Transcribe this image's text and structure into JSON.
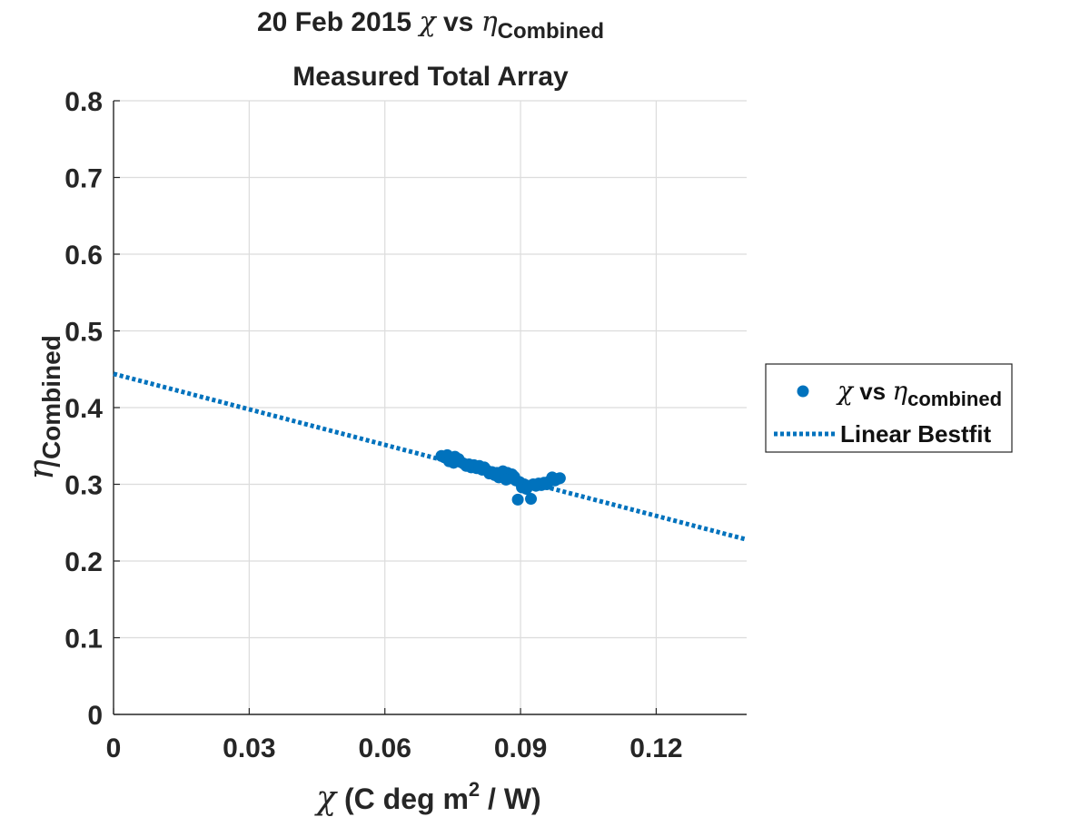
{
  "chart_data": {
    "type": "scatter",
    "title": {
      "line1_prefix": "20 Feb 2015 ",
      "line1_chi": "χ",
      "line1_vs": " vs ",
      "line1_eta": "η",
      "line1_sub": "Combined",
      "line2": "Measured Total Array"
    },
    "xlabel": {
      "symbol": "χ",
      "text": " (C deg m",
      "sup": "2",
      "tail": " / W)"
    },
    "ylabel": {
      "symbol": "η",
      "sub": "Combined"
    },
    "xlim": [
      0,
      0.14
    ],
    "ylim": [
      0,
      0.8
    ],
    "xticks": [
      0,
      0.03,
      0.06,
      0.09,
      0.12
    ],
    "xtick_labels": [
      "0",
      "0.03",
      "0.06",
      "0.09",
      "0.12"
    ],
    "yticks": [
      0,
      0.1,
      0.2,
      0.3,
      0.4,
      0.5,
      0.6,
      0.7,
      0.8
    ],
    "ytick_labels": [
      "0",
      "0.1",
      "0.2",
      "0.3",
      "0.4",
      "0.5",
      "0.6",
      "0.7",
      "0.8"
    ],
    "grid": true,
    "legend_position": "outside-right",
    "series": [
      {
        "name": "χ vs η combined",
        "legend_symbol": "χ",
        "legend_vs": " vs ",
        "legend_eta": "η",
        "legend_sub": "combined",
        "type": "scatter",
        "color": "#0072BD",
        "points": [
          [
            0.0725,
            0.337
          ],
          [
            0.0732,
            0.335
          ],
          [
            0.0738,
            0.338
          ],
          [
            0.0742,
            0.33
          ],
          [
            0.0748,
            0.334
          ],
          [
            0.0752,
            0.328
          ],
          [
            0.0757,
            0.331
          ],
          [
            0.0763,
            0.333
          ],
          [
            0.0768,
            0.329
          ],
          [
            0.0774,
            0.327
          ],
          [
            0.078,
            0.324
          ],
          [
            0.0786,
            0.326
          ],
          [
            0.0791,
            0.322
          ],
          [
            0.0797,
            0.325
          ],
          [
            0.0803,
            0.321
          ],
          [
            0.0809,
            0.324
          ],
          [
            0.0815,
            0.319
          ],
          [
            0.082,
            0.322
          ],
          [
            0.0826,
            0.318
          ],
          [
            0.0831,
            0.314
          ],
          [
            0.0837,
            0.316
          ],
          [
            0.0843,
            0.312
          ],
          [
            0.0848,
            0.315
          ],
          [
            0.0852,
            0.309
          ],
          [
            0.0857,
            0.313
          ],
          [
            0.0861,
            0.317
          ],
          [
            0.0866,
            0.311
          ],
          [
            0.0871,
            0.315
          ],
          [
            0.0876,
            0.308
          ],
          [
            0.0881,
            0.313
          ],
          [
            0.0886,
            0.31
          ],
          [
            0.089,
            0.305
          ],
          [
            0.0894,
            0.28
          ],
          [
            0.0898,
            0.303
          ],
          [
            0.0903,
            0.296
          ],
          [
            0.0908,
            0.3
          ],
          [
            0.0913,
            0.294
          ],
          [
            0.0918,
            0.298
          ],
          [
            0.0923,
            0.281
          ],
          [
            0.0928,
            0.3
          ],
          [
            0.0934,
            0.298
          ],
          [
            0.094,
            0.301
          ],
          [
            0.0946,
            0.299
          ],
          [
            0.0952,
            0.302
          ],
          [
            0.0958,
            0.3
          ],
          [
            0.0964,
            0.304
          ],
          [
            0.097,
            0.309
          ],
          [
            0.0976,
            0.305
          ],
          [
            0.0982,
            0.307
          ],
          [
            0.0987,
            0.308
          ],
          [
            0.0868,
            0.306
          ],
          [
            0.0755,
            0.336
          ]
        ]
      },
      {
        "name": "Linear Bestfit",
        "type": "line",
        "style": "dotted",
        "color": "#0072BD",
        "x": [
          0,
          0.14
        ],
        "y": [
          0.444,
          0.228
        ]
      }
    ]
  }
}
